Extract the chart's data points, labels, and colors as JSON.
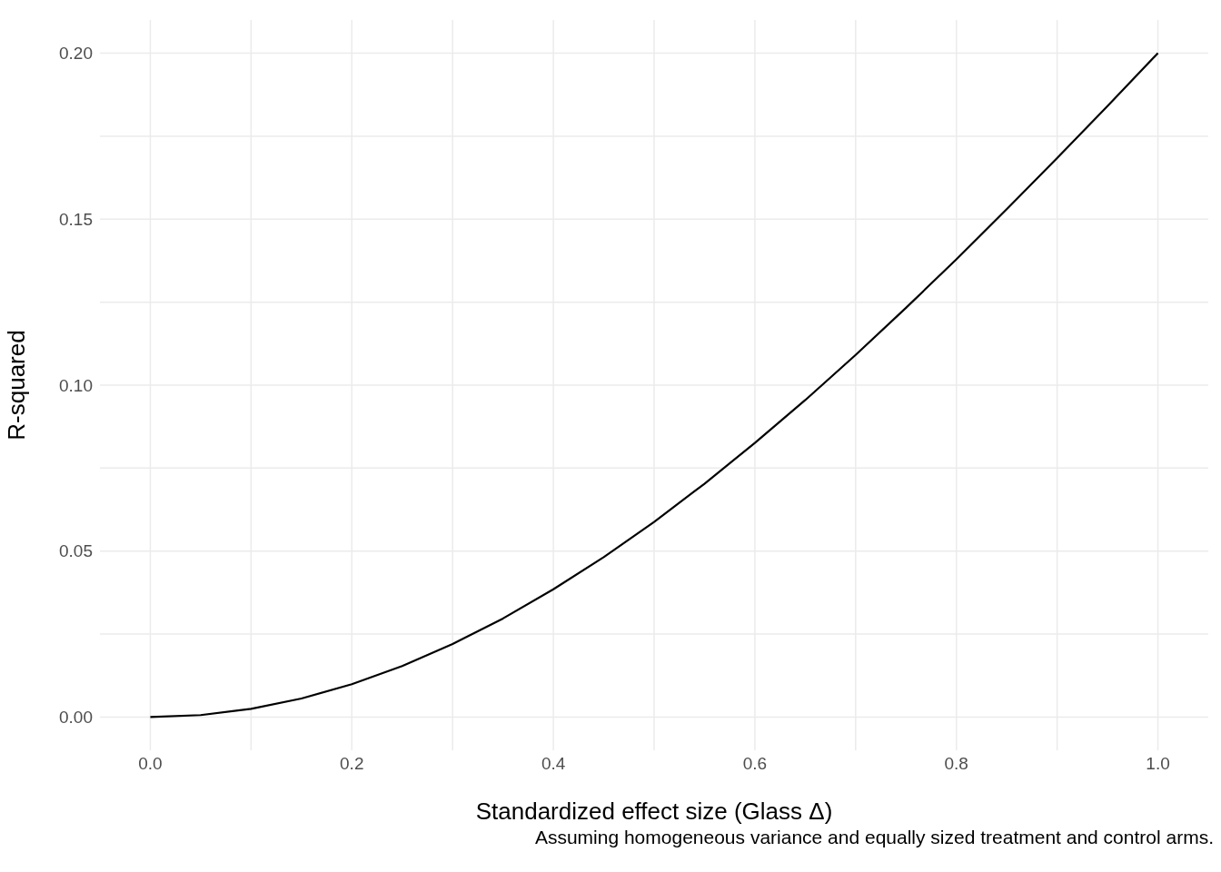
{
  "chart_data": {
    "type": "line",
    "xlabel": "Standardized effect size (Glass Δ)",
    "ylabel": "R-squared",
    "annotations": [
      "Assuming homogeneous variance and equally sized treatment and control arms."
    ],
    "x": [
      0,
      0.05,
      0.1,
      0.15,
      0.2,
      0.25,
      0.3,
      0.35,
      0.4,
      0.45,
      0.5,
      0.55,
      0.6,
      0.65,
      0.7,
      0.75,
      0.8,
      0.85,
      0.9,
      0.95,
      1.0
    ],
    "series": [
      {
        "color": "#000000",
        "values": [
          0,
          0.0006,
          0.0025,
          0.0056,
          0.0099,
          0.0154,
          0.022,
          0.0297,
          0.0385,
          0.0482,
          0.0588,
          0.0703,
          0.0826,
          0.0955,
          0.1091,
          0.1233,
          0.1379,
          0.153,
          0.1684,
          0.1841,
          0.2
        ]
      }
    ],
    "xlim": [
      -0.05,
      1.05
    ],
    "ylim": [
      -0.01,
      0.21
    ],
    "xticks": [
      {
        "value": 0,
        "label": "0.0"
      },
      {
        "value": 0.1,
        "label": null
      },
      {
        "value": 0.2,
        "label": "0.2"
      },
      {
        "value": 0.3,
        "label": null
      },
      {
        "value": 0.4,
        "label": "0.4"
      },
      {
        "value": 0.5,
        "label": null
      },
      {
        "value": 0.6,
        "label": "0.6"
      },
      {
        "value": 0.7,
        "label": null
      },
      {
        "value": 0.8,
        "label": "0.8"
      },
      {
        "value": 0.9,
        "label": null
      },
      {
        "value": 1.0,
        "label": "1.0"
      }
    ],
    "yticks": [
      {
        "value": 0,
        "label": "0.00"
      },
      {
        "value": 0.025,
        "label": null
      },
      {
        "value": 0.05,
        "label": "0.05"
      },
      {
        "value": 0.075,
        "label": null
      },
      {
        "value": 0.1,
        "label": "0.10"
      },
      {
        "value": 0.125,
        "label": null
      },
      {
        "value": 0.15,
        "label": "0.15"
      },
      {
        "value": 0.175,
        "label": null
      },
      {
        "value": 0.2,
        "label": "0.20"
      }
    ],
    "grid": true,
    "legend": false,
    "marker": "none",
    "line_style": "solid"
  }
}
